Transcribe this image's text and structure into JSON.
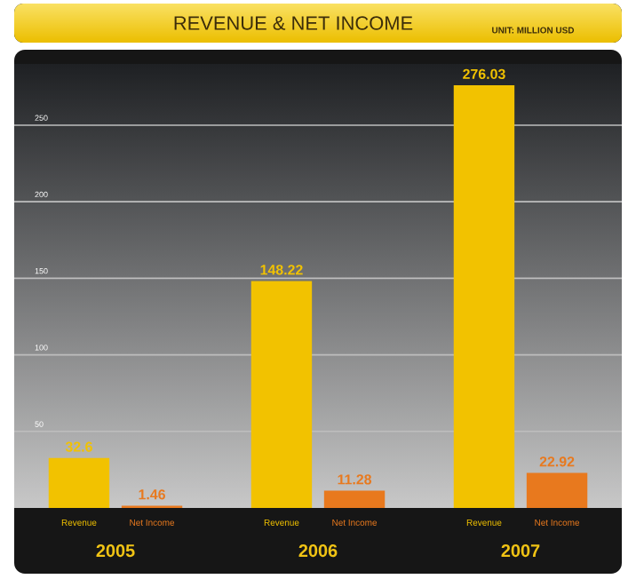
{
  "chart_data": {
    "type": "bar",
    "title": "REVENUE & NET INCOME",
    "subtitle": "UNIT: MILLION USD",
    "categories": [
      "2005",
      "2006",
      "2007"
    ],
    "series": [
      {
        "name": "Revenue",
        "color": "#f2c200",
        "values": [
          32.6,
          148.22,
          276.03
        ]
      },
      {
        "name": "Net Income",
        "color": "#e8791e",
        "values": [
          1.46,
          11.28,
          22.92
        ]
      }
    ],
    "ylim": [
      0,
      290
    ],
    "yticks": [
      50,
      100,
      150,
      200,
      250
    ],
    "grid": "y",
    "data_labels": true
  }
}
